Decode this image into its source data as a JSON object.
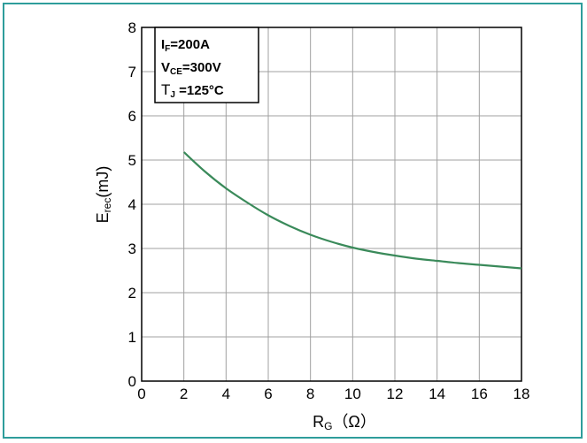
{
  "chart_data": {
    "type": "line",
    "title": "",
    "xlabel": {
      "main": "R",
      "sub": "G",
      "unit": "（Ω）"
    },
    "ylabel": {
      "main": "E",
      "sub": "rec",
      "unit": "(mJ)"
    },
    "xlim": [
      0,
      18
    ],
    "ylim": [
      0,
      8
    ],
    "xticks": [
      0,
      2,
      4,
      6,
      8,
      10,
      12,
      14,
      16,
      18
    ],
    "yticks": [
      0,
      1,
      2,
      3,
      4,
      5,
      6,
      7,
      8
    ],
    "grid": true,
    "series": [
      {
        "color": "#3a8a5a",
        "x": [
          2,
          3,
          4,
          5,
          6,
          7,
          8,
          9,
          10,
          11,
          12,
          13,
          14,
          15,
          16,
          17,
          18
        ],
        "y": [
          5.18,
          4.74,
          4.36,
          4.04,
          3.75,
          3.51,
          3.31,
          3.15,
          3.02,
          2.92,
          2.84,
          2.77,
          2.72,
          2.67,
          2.63,
          2.59,
          2.55
        ]
      }
    ],
    "annotation": {
      "line1": {
        "main": "I",
        "sub": "F",
        "rest": "=200A"
      },
      "line2": {
        "main": "V",
        "sub": "CE",
        "rest": "=300V"
      },
      "line3": {
        "main": "T",
        "sub": "J",
        "rest": " =125°C"
      }
    }
  },
  "colors": {
    "frame": "#2e9d9b",
    "curve": "#3a8a5a",
    "grid": "#a0a0a0"
  }
}
